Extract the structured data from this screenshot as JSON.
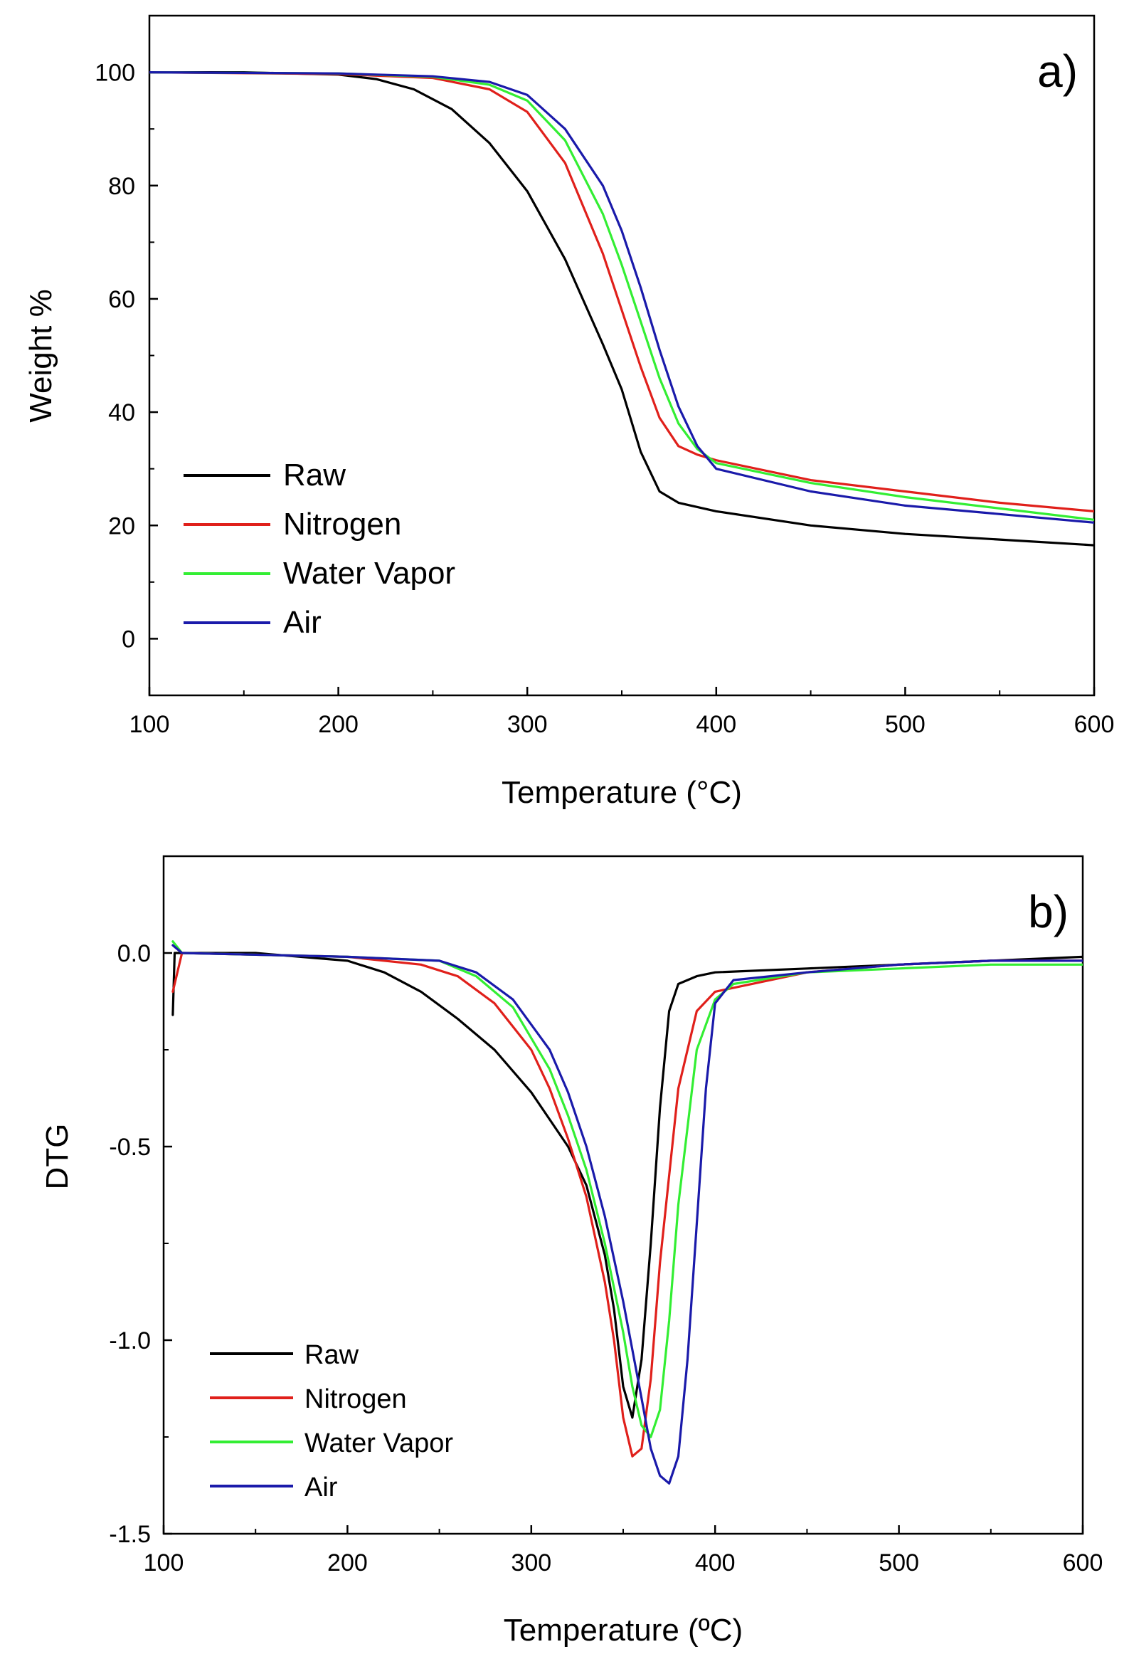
{
  "chart_data": [
    {
      "type": "line",
      "panel_label": "a)",
      "xlabel": "Temperature (°C)",
      "ylabel": "Weight %",
      "xlim": [
        100,
        600
      ],
      "ylim": [
        -10,
        110
      ],
      "xticks": [
        "100",
        "200",
        "300",
        "400",
        "500",
        "600"
      ],
      "yticks": [
        "0",
        "20",
        "40",
        "60",
        "80",
        "100"
      ],
      "legend_position": "bottom-left",
      "series": [
        {
          "name": "Raw",
          "color": "#000000",
          "x": [
            100,
            150,
            200,
            220,
            240,
            260,
            280,
            300,
            320,
            340,
            350,
            360,
            370,
            380,
            400,
            450,
            500,
            550,
            600
          ],
          "y": [
            100,
            100,
            99.6,
            98.8,
            97,
            93.5,
            87.5,
            79,
            67,
            52,
            44,
            33,
            26,
            24,
            22.5,
            20,
            18.5,
            17.5,
            16.5
          ]
        },
        {
          "name": "Nitrogen",
          "color": "#e0201b",
          "x": [
            100,
            200,
            250,
            280,
            300,
            320,
            340,
            350,
            360,
            370,
            380,
            390,
            400,
            450,
            500,
            550,
            600
          ],
          "y": [
            100,
            99.7,
            99,
            97,
            93,
            84,
            68,
            58,
            48,
            39,
            34,
            32.5,
            31.5,
            28,
            26,
            24,
            22.5
          ]
        },
        {
          "name": "Water Vapor",
          "color": "#33ee33",
          "x": [
            100,
            200,
            250,
            280,
            300,
            320,
            340,
            350,
            360,
            370,
            380,
            390,
            400,
            450,
            500,
            550,
            600
          ],
          "y": [
            100,
            99.8,
            99.2,
            97.8,
            95,
            88,
            75,
            66,
            56,
            46,
            38,
            33.5,
            31,
            27.5,
            25,
            23,
            21
          ]
        },
        {
          "name": "Air",
          "color": "#1a1aaa",
          "x": [
            100,
            200,
            250,
            280,
            300,
            320,
            340,
            350,
            360,
            370,
            380,
            390,
            400,
            450,
            500,
            550,
            600
          ],
          "y": [
            100,
            99.8,
            99.3,
            98.3,
            96,
            90,
            80,
            72,
            62,
            51,
            41,
            34,
            30,
            26,
            23.5,
            22,
            20.5
          ]
        }
      ]
    },
    {
      "type": "line",
      "panel_label": "b)",
      "xlabel": "Temperature (ºC)",
      "ylabel": "DTG",
      "xlim": [
        100,
        600
      ],
      "ylim": [
        -1.5,
        0.25
      ],
      "xticks": [
        "100",
        "200",
        "300",
        "400",
        "500",
        "600"
      ],
      "yticks": [
        "-1.5",
        "-1.0",
        "-0.5",
        "0.0"
      ],
      "legend_position": "bottom-left",
      "series": [
        {
          "name": "Raw",
          "color": "#000000",
          "x": [
            105,
            106,
            110,
            150,
            200,
            220,
            240,
            260,
            280,
            300,
            320,
            330,
            340,
            345,
            350,
            355,
            360,
            365,
            370,
            375,
            380,
            390,
            400,
            450,
            500,
            550,
            600
          ],
          "y": [
            -0.16,
            0.0,
            0.0,
            0.0,
            -0.02,
            -0.05,
            -0.1,
            -0.17,
            -0.25,
            -0.36,
            -0.5,
            -0.6,
            -0.78,
            -0.92,
            -1.12,
            -1.2,
            -1.05,
            -0.75,
            -0.4,
            -0.15,
            -0.08,
            -0.06,
            -0.05,
            -0.04,
            -0.03,
            -0.02,
            -0.01
          ]
        },
        {
          "name": "Nitrogen",
          "color": "#e0201b",
          "x": [
            105,
            110,
            200,
            240,
            260,
            280,
            300,
            310,
            320,
            330,
            340,
            345,
            350,
            355,
            360,
            365,
            370,
            380,
            390,
            400,
            450,
            500,
            550,
            600
          ],
          "y": [
            -0.1,
            0.0,
            -0.01,
            -0.03,
            -0.06,
            -0.13,
            -0.25,
            -0.35,
            -0.48,
            -0.63,
            -0.85,
            -1.0,
            -1.2,
            -1.3,
            -1.28,
            -1.1,
            -0.8,
            -0.35,
            -0.15,
            -0.1,
            -0.05,
            -0.03,
            -0.02,
            -0.02
          ]
        },
        {
          "name": "Water Vapor",
          "color": "#33ee33",
          "x": [
            105,
            110,
            200,
            250,
            270,
            290,
            310,
            320,
            330,
            340,
            350,
            355,
            360,
            365,
            370,
            375,
            380,
            390,
            400,
            410,
            450,
            500,
            550,
            600
          ],
          "y": [
            0.03,
            0.0,
            -0.01,
            -0.02,
            -0.06,
            -0.14,
            -0.3,
            -0.42,
            -0.56,
            -0.75,
            -0.98,
            -1.12,
            -1.22,
            -1.25,
            -1.18,
            -0.95,
            -0.65,
            -0.25,
            -0.12,
            -0.08,
            -0.05,
            -0.04,
            -0.03,
            -0.03
          ]
        },
        {
          "name": "Air",
          "color": "#1a1aaa",
          "x": [
            105,
            110,
            200,
            250,
            270,
            290,
            310,
            320,
            330,
            340,
            350,
            360,
            365,
            370,
            375,
            380,
            385,
            390,
            395,
            400,
            410,
            450,
            500,
            550,
            600
          ],
          "y": [
            0.02,
            0.0,
            -0.01,
            -0.02,
            -0.05,
            -0.12,
            -0.25,
            -0.36,
            -0.5,
            -0.68,
            -0.9,
            -1.15,
            -1.28,
            -1.35,
            -1.37,
            -1.3,
            -1.05,
            -0.7,
            -0.35,
            -0.13,
            -0.07,
            -0.05,
            -0.03,
            -0.02,
            -0.02
          ]
        }
      ]
    }
  ]
}
